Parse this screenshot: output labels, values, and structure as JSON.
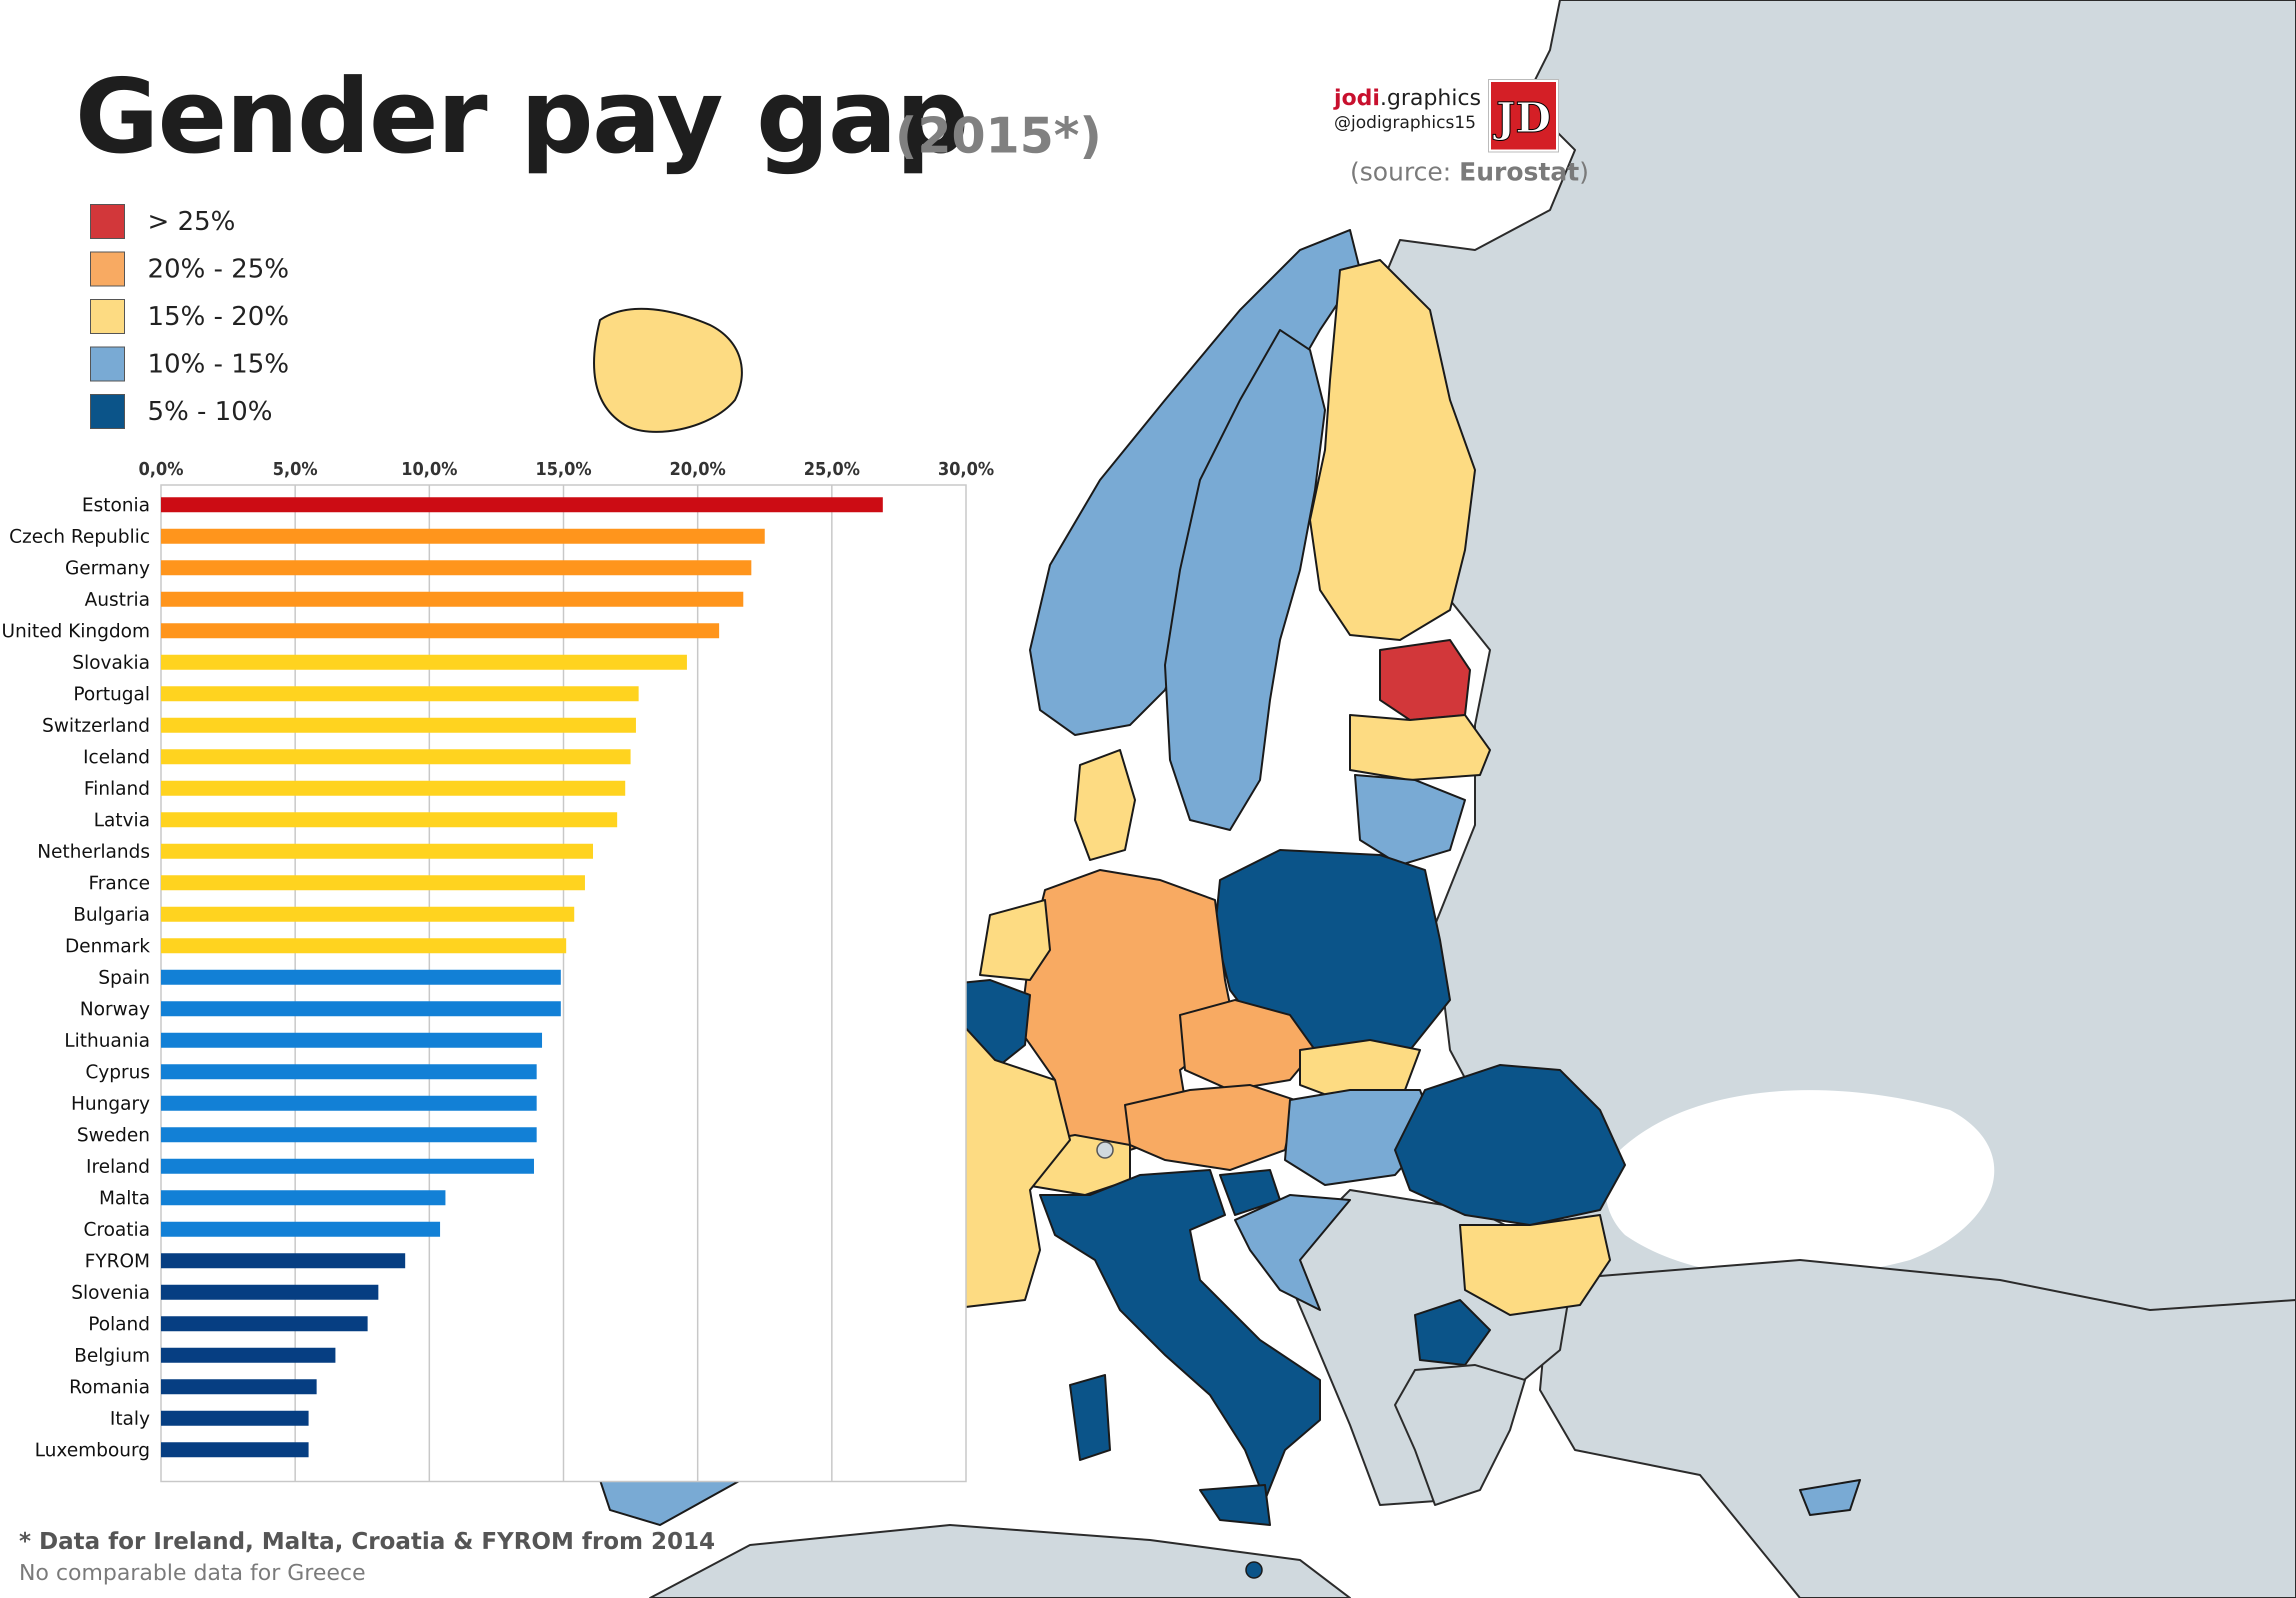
{
  "header": {
    "title": "Gender pay gap",
    "year": "(2015*)",
    "brand_bold": "jodi",
    "brand_rest": ".graphics",
    "brand_handle": "@jodigraphics15",
    "logo_letter": "JD",
    "source_prefix": "(source: ",
    "source_name": "Eurostat",
    "source_suffix": ")"
  },
  "legend": [
    {
      "label": "> 25%",
      "color": "#d2373a"
    },
    {
      "label": "20% - 25%",
      "color": "#f8aa62"
    },
    {
      "label": "15% - 20%",
      "color": "#fddb82"
    },
    {
      "label": "10% - 15%",
      "color": "#79aad4"
    },
    {
      "label": "5% - 10%",
      "color": "#0b5489"
    }
  ],
  "colors": {
    "nodata": "#d0d9de",
    "bar_red": "#cc0c14",
    "bar_orange": "#ff951c",
    "bar_yellow": "#ffd31f",
    "bar_blue": "#1280d6",
    "bar_navy": "#063e82",
    "grid": "#c8c8c8"
  },
  "chart_data": {
    "type": "bar",
    "orientation": "horizontal",
    "categories": [
      "Estonia",
      "Czech Republic",
      "Germany",
      "Austria",
      "United Kingdom",
      "Slovakia",
      "Portugal",
      "Switzerland",
      "Iceland",
      "Finland",
      "Latvia",
      "Netherlands",
      "France",
      "Bulgaria",
      "Denmark",
      "Spain",
      "Norway",
      "Lithuania",
      "Cyprus",
      "Hungary",
      "Sweden",
      "Ireland",
      "Malta",
      "Croatia",
      "FYROM",
      "Slovenia",
      "Poland",
      "Belgium",
      "Romania",
      "Italy",
      "Luxembourg"
    ],
    "values": [
      26.9,
      22.5,
      22.0,
      21.7,
      20.8,
      19.6,
      17.8,
      17.7,
      17.5,
      17.3,
      17.0,
      16.1,
      15.8,
      15.4,
      15.1,
      14.9,
      14.9,
      14.2,
      14.0,
      14.0,
      14.0,
      13.9,
      10.6,
      10.4,
      9.1,
      8.1,
      7.7,
      6.5,
      5.8,
      5.5,
      5.5
    ],
    "tick_labels": [
      "0,0%",
      "5,0%",
      "10,0%",
      "15,0%",
      "20,0%",
      "25,0%",
      "30,0%"
    ],
    "xlim": [
      0,
      30
    ],
    "grid": true
  },
  "footnote": {
    "line1": "* Data for Ireland, Malta, Croatia & FYROM from 2014",
    "line2": "No comparable data for Greece"
  }
}
